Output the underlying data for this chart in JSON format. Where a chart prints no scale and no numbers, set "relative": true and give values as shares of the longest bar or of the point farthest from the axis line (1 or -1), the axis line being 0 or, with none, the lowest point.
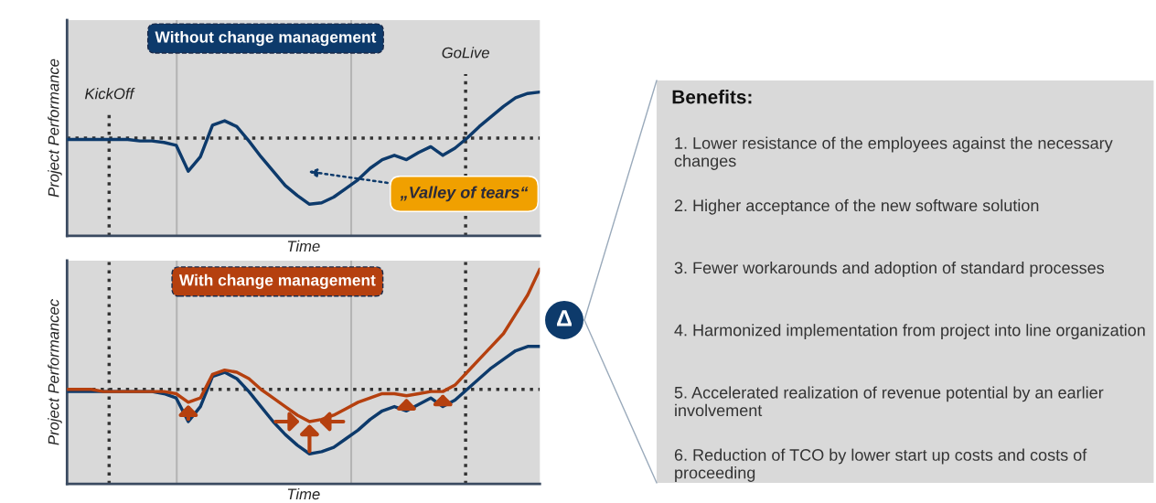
{
  "chart_data": [
    {
      "type": "line",
      "relative": true,
      "title": "Without change management",
      "xlabel": "Time",
      "ylabel": "Project Performance",
      "categories": [
        null,
        null,
        null,
        null,
        null,
        null,
        null,
        null,
        null,
        null,
        null,
        null,
        null,
        null,
        null,
        null,
        null,
        null,
        null,
        null,
        null,
        null,
        null,
        null,
        null,
        null,
        null,
        null,
        null,
        null,
        null,
        null,
        null,
        null,
        null,
        null,
        null,
        null,
        null,
        null
      ],
      "series": [
        {
          "color": "#0d3a6b",
          "values": [
            0.67,
            0.67,
            0.67,
            0.67,
            0.67,
            0.67,
            0.66,
            0.66,
            0.65,
            0.63,
            0.45,
            0.55,
            0.77,
            0.8,
            0.76,
            0.66,
            0.55,
            0.45,
            0.35,
            0.28,
            0.22,
            0.23,
            0.27,
            0.33,
            0.39,
            0.47,
            0.53,
            0.56,
            0.53,
            0.58,
            0.62,
            0.56,
            0.61,
            0.68,
            0.76,
            0.83,
            0.9,
            0.96,
            0.99,
            1.0
          ]
        }
      ],
      "ref_lines": [
        {
          "axis": "y",
          "value": 0.68,
          "color": "#333333",
          "line_style": "dotted"
        }
      ],
      "annotations": [
        "KickOff",
        "GoLive",
        "„Valley of tears“"
      ]
    },
    {
      "type": "line",
      "relative": true,
      "title": "With change management",
      "xlabel": "Time",
      "ylabel": "Project Performancec",
      "categories": [
        null,
        null,
        null,
        null,
        null,
        null,
        null,
        null,
        null,
        null,
        null,
        null,
        null,
        null,
        null,
        null,
        null,
        null,
        null,
        null,
        null,
        null,
        null,
        null,
        null,
        null,
        null,
        null,
        null,
        null,
        null,
        null,
        null,
        null,
        null,
        null,
        null,
        null,
        null,
        null
      ],
      "series": [
        {
          "color": "#0d3a6b",
          "values": [
            0.43,
            0.43,
            0.43,
            0.43,
            0.43,
            0.43,
            0.43,
            0.43,
            0.42,
            0.4,
            0.29,
            0.36,
            0.5,
            0.52,
            0.49,
            0.43,
            0.36,
            0.29,
            0.23,
            0.18,
            0.14,
            0.15,
            0.17,
            0.21,
            0.25,
            0.3,
            0.34,
            0.36,
            0.34,
            0.37,
            0.4,
            0.36,
            0.39,
            0.44,
            0.49,
            0.54,
            0.58,
            0.62,
            0.64,
            0.64
          ]
        },
        {
          "color": "#b5400f",
          "values": [
            0.44,
            0.44,
            0.44,
            0.43,
            0.43,
            0.43,
            0.43,
            0.43,
            0.43,
            0.42,
            0.38,
            0.4,
            0.51,
            0.53,
            0.52,
            0.49,
            0.44,
            0.4,
            0.36,
            0.32,
            0.29,
            0.3,
            0.32,
            0.35,
            0.38,
            0.4,
            0.42,
            0.42,
            0.41,
            0.42,
            0.43,
            0.43,
            0.46,
            0.52,
            0.58,
            0.64,
            0.7,
            0.79,
            0.88,
            1.0
          ]
        }
      ],
      "ref_lines": [
        {
          "axis": "y",
          "value": 0.44,
          "color": "#333333",
          "line_style": "dotted"
        }
      ]
    },
    {
      "type": "other",
      "title": "Benefits:",
      "annotations": [
        "Δ",
        "1. Lower resistance of the employees against the necessary changes",
        "2. Higher acceptance of the new software solution",
        "3. Fewer workarounds and adoption of standard processes",
        "4. Harmonized implementation from project into line organization",
        "5. Accelerated realization of revenue potential by an earlier involvement",
        "6. Reduction of TCO by lower start up costs and costs of proceeding"
      ]
    }
  ]
}
